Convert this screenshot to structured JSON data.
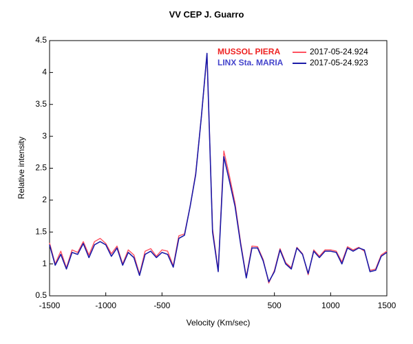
{
  "chart_data": {
    "type": "line",
    "title": "VV CEP   J. Guarro",
    "x_label": "Velocity (Km/sec)",
    "y_label": "Relative intensity",
    "annotations": [
      {
        "text": "MUSSOL  PIERA",
        "color": "#ee2222"
      },
      {
        "text": "LINX  Sta. MARIA",
        "color": "#4444cc"
      }
    ],
    "x": [
      -1500,
      -1450,
      -1400,
      -1350,
      -1300,
      -1250,
      -1200,
      -1150,
      -1100,
      -1050,
      -1000,
      -950,
      -900,
      -850,
      -800,
      -750,
      -700,
      -650,
      -600,
      -550,
      -500,
      -450,
      -400,
      -350,
      -300,
      -250,
      -200,
      -150,
      -100,
      -50,
      0,
      50,
      100,
      150,
      200,
      250,
      300,
      350,
      400,
      450,
      500,
      550,
      600,
      650,
      700,
      750,
      800,
      850,
      900,
      950,
      1000,
      1050,
      1100,
      1150,
      1200,
      1250,
      1300,
      1350,
      1400,
      1450,
      1500
    ],
    "series": [
      {
        "name": "2017-05-24.924",
        "color": "#ff5060",
        "values": [
          1.33,
          1.0,
          1.2,
          0.94,
          1.22,
          1.18,
          1.35,
          1.14,
          1.35,
          1.4,
          1.32,
          1.16,
          1.28,
          1.0,
          1.22,
          1.14,
          0.84,
          1.2,
          1.24,
          1.12,
          1.22,
          1.2,
          0.97,
          1.44,
          1.47,
          1.9,
          2.42,
          3.3,
          4.28,
          1.55,
          0.9,
          2.77,
          2.38,
          1.95,
          1.33,
          0.8,
          1.28,
          1.27,
          1.07,
          0.7,
          0.9,
          1.24,
          1.02,
          0.94,
          1.26,
          1.16,
          0.83,
          1.22,
          1.12,
          1.22,
          1.22,
          1.2,
          1.03,
          1.27,
          1.22,
          1.26,
          1.2,
          0.9,
          0.92,
          1.14,
          1.2
        ]
      },
      {
        "name": "2017-05-24.923",
        "color": "#1a1aa8",
        "values": [
          1.3,
          0.98,
          1.15,
          0.92,
          1.18,
          1.15,
          1.32,
          1.1,
          1.3,
          1.35,
          1.3,
          1.12,
          1.25,
          0.98,
          1.18,
          1.1,
          0.82,
          1.15,
          1.2,
          1.1,
          1.18,
          1.15,
          0.95,
          1.4,
          1.45,
          1.9,
          2.4,
          3.3,
          4.3,
          1.5,
          0.88,
          2.68,
          2.3,
          1.9,
          1.3,
          0.78,
          1.25,
          1.25,
          1.05,
          0.72,
          0.88,
          1.22,
          1.0,
          0.92,
          1.25,
          1.15,
          0.85,
          1.2,
          1.1,
          1.2,
          1.2,
          1.18,
          1.0,
          1.25,
          1.2,
          1.25,
          1.22,
          0.88,
          0.9,
          1.12,
          1.18
        ]
      }
    ],
    "xlim": [
      -1500,
      1500
    ],
    "xticks": [
      -1500,
      -1000,
      -500,
      500,
      1000,
      1500
    ],
    "ylim": [
      0.5,
      4.5
    ],
    "yticks": [
      0.5,
      1,
      1.5,
      2,
      2.5,
      3,
      3.5,
      4,
      4.5
    ],
    "grid": false
  }
}
